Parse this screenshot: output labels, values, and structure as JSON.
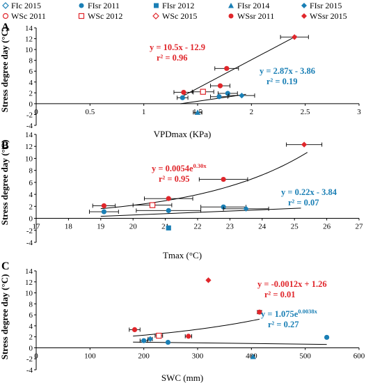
{
  "legend": {
    "items": [
      {
        "label": "FIc 2015",
        "marker": "diamond-open",
        "color": "#1a7fb5"
      },
      {
        "label": "FIsr 2011",
        "marker": "circle",
        "color": "#1a7fb5"
      },
      {
        "label": "FIsr 2012",
        "marker": "square",
        "color": "#1a7fb5"
      },
      {
        "label": "FIsr 2014",
        "marker": "triangle",
        "color": "#1a7fb5"
      },
      {
        "label": "FIsr 2015",
        "marker": "diamond",
        "color": "#1a7fb5"
      },
      {
        "label": "WSc 2011",
        "marker": "circle-open",
        "color": "#e0262b"
      },
      {
        "label": "WSc 2012",
        "marker": "square-open",
        "color": "#e0262b"
      },
      {
        "label": "WSc 2015",
        "marker": "diamond-open",
        "color": "#e0262b"
      },
      {
        "label": "WSsr 2011",
        "marker": "circle",
        "color": "#e0262b"
      },
      {
        "label": "WSsr 2015",
        "marker": "diamond",
        "color": "#e0262b"
      }
    ]
  },
  "colors": {
    "fi": "#1a7fb5",
    "ws": "#e0262b",
    "fit_line": "#000000"
  },
  "chart_data": [
    {
      "panel_label": "A",
      "type": "scatter",
      "xlabel": "VPDmax (KPa)",
      "ylabel": "Stress degree day  (°C)",
      "xlim": [
        0,
        3
      ],
      "ylim": [
        -4,
        14
      ],
      "x_ticks": [
        "0",
        "0.5",
        "1",
        "1.5",
        "2",
        "2.5",
        "3"
      ],
      "y_ticks": [
        "-4",
        "-2",
        "0",
        "2",
        "4",
        "6",
        "8",
        "10",
        "12",
        "14"
      ],
      "points": [
        {
          "x": 2.4,
          "y": 12.3,
          "xerr": 0.13,
          "group": "ws",
          "marker": "diamond"
        },
        {
          "x": 1.77,
          "y": 6.5,
          "xerr": 0.11,
          "group": "ws",
          "marker": "circle"
        },
        {
          "x": 1.71,
          "y": 3.3,
          "xerr": 0.09,
          "group": "ws",
          "marker": "circle"
        },
        {
          "x": 1.37,
          "y": 2.1,
          "xerr": 0.09,
          "group": "ws",
          "marker": "circle"
        },
        {
          "x": 1.55,
          "y": 2.2,
          "xerr": 0.1,
          "group": "ws",
          "marker": "square-open"
        },
        {
          "x": 1.78,
          "y": 1.9,
          "xerr": 0.09,
          "group": "fi",
          "marker": "circle"
        },
        {
          "x": 1.7,
          "y": 1.3,
          "xerr": 0.08,
          "group": "fi",
          "marker": "circle"
        },
        {
          "x": 1.91,
          "y": 1.5,
          "xerr": 0.12,
          "group": "fi",
          "marker": "diamond"
        },
        {
          "x": 1.36,
          "y": 1.1,
          "xerr": 0.05,
          "group": "fi",
          "marker": "circle"
        },
        {
          "x": 1.5,
          "y": -1.6,
          "xerr": 0.04,
          "group": "fi",
          "marker": "triangle"
        }
      ],
      "fits": [
        {
          "kind": "linear",
          "a": 10.5,
          "b": -12.9,
          "x_from": 1.35,
          "x_to": 2.42,
          "color": "#000000"
        },
        {
          "kind": "linear",
          "a": 2.87,
          "b": -3.86,
          "x_from": 1.34,
          "x_to": 1.95,
          "color": "#000000"
        }
      ],
      "annotations": [
        {
          "lines": [
            "y = 10.5x - 12.9",
            "r² = 0.96"
          ],
          "color": "#e0262b"
        },
        {
          "lines": [
            "y = 2.87x - 3.86",
            "r² = 0.19"
          ],
          "color": "#1a7fb5"
        }
      ]
    },
    {
      "panel_label": "B",
      "type": "scatter",
      "xlabel": "Tmax (°C)",
      "ylabel": "Stress degree day  (°C)",
      "xlim": [
        17,
        27
      ],
      "ylim": [
        -4,
        14
      ],
      "x_ticks": [
        "17",
        "18",
        "19",
        "20",
        "21",
        "22",
        "23",
        "24",
        "25",
        "26",
        "27"
      ],
      "y_ticks": [
        "-4",
        "-2",
        "0",
        "2",
        "4",
        "6",
        "8",
        "10",
        "12",
        "14"
      ],
      "points": [
        {
          "x": 25.3,
          "y": 12.3,
          "xerr": 0.55,
          "group": "ws",
          "marker": "diamond"
        },
        {
          "x": 22.8,
          "y": 6.5,
          "xerr": 0.75,
          "group": "ws",
          "marker": "circle"
        },
        {
          "x": 21.1,
          "y": 3.3,
          "xerr": 0.75,
          "group": "ws",
          "marker": "circle"
        },
        {
          "x": 19.1,
          "y": 2.1,
          "xerr": 0.35,
          "group": "ws",
          "marker": "circle"
        },
        {
          "x": 20.6,
          "y": 2.2,
          "xerr": 0.6,
          "group": "ws",
          "marker": "square-open"
        },
        {
          "x": 22.8,
          "y": 1.9,
          "xerr": 0.7,
          "group": "fi",
          "marker": "circle"
        },
        {
          "x": 21.1,
          "y": 1.3,
          "xerr": 1.0,
          "group": "fi",
          "marker": "circle"
        },
        {
          "x": 23.5,
          "y": 1.6,
          "xerr": 0.7,
          "group": "fi",
          "marker": "diamond"
        },
        {
          "x": 19.1,
          "y": 1.1,
          "xerr": 0.45,
          "group": "fi",
          "marker": "circle"
        },
        {
          "x": 21.1,
          "y": -1.6,
          "xerr": 0.0,
          "group": "fi",
          "marker": "square"
        }
      ],
      "fits": [
        {
          "kind": "exponential",
          "a": 0.0054,
          "b": 0.3,
          "x_from": 19.0,
          "x_to": 25.4,
          "color": "#000000"
        },
        {
          "kind": "linear",
          "a": 0.22,
          "b": -3.84,
          "x_from": 19.0,
          "x_to": 25.2,
          "color": "#000000"
        }
      ],
      "annotations": [
        {
          "lines": [
            "y = 0.0054e",
            "0.30x",
            "r² = 0.95"
          ],
          "color": "#e0262b"
        },
        {
          "lines": [
            "y = 0.22x - 3.84",
            "r² = 0.07"
          ],
          "color": "#1a7fb5"
        }
      ]
    },
    {
      "panel_label": "C",
      "type": "scatter",
      "xlabel": "SWC (mm)",
      "ylabel": "Stress degree day  (°C)",
      "xlim": [
        0,
        600
      ],
      "ylim": [
        -4,
        14
      ],
      "x_ticks": [
        "0",
        "100",
        "200",
        "300",
        "400",
        "500",
        "600"
      ],
      "y_ticks": [
        "-4",
        "-2",
        "0",
        "2",
        "4",
        "6",
        "8",
        "10",
        "12",
        "14"
      ],
      "points": [
        {
          "x": 320,
          "y": 12.3,
          "xerr": 0,
          "group": "ws",
          "marker": "diamond"
        },
        {
          "x": 415,
          "y": 6.5,
          "xerr": 4,
          "group": "ws",
          "marker": "circle"
        },
        {
          "x": 183,
          "y": 3.3,
          "xerr": 10,
          "group": "ws",
          "marker": "circle"
        },
        {
          "x": 283,
          "y": 2.1,
          "xerr": 6,
          "group": "ws",
          "marker": "circle"
        },
        {
          "x": 228,
          "y": 2.2,
          "xerr": 7,
          "group": "ws",
          "marker": "square-open"
        },
        {
          "x": 540,
          "y": 1.9,
          "xerr": 2,
          "group": "fi",
          "marker": "circle"
        },
        {
          "x": 212,
          "y": 1.6,
          "xerr": 4,
          "group": "fi",
          "marker": "diamond"
        },
        {
          "x": 200,
          "y": 1.3,
          "xerr": 7,
          "group": "fi",
          "marker": "circle"
        },
        {
          "x": 245,
          "y": 1.0,
          "xerr": 0,
          "group": "fi",
          "marker": "circle"
        },
        {
          "x": 403,
          "y": -1.6,
          "xerr": 3,
          "group": "fi",
          "marker": "triangle"
        }
      ],
      "fits": [
        {
          "kind": "linear",
          "a": -0.0012,
          "b": 1.26,
          "x_from": 180,
          "x_to": 540,
          "color": "#000000"
        },
        {
          "kind": "exponential",
          "a": 1.075,
          "b": 0.0038,
          "x_from": 180,
          "x_to": 415,
          "color": "#000000"
        }
      ],
      "annotations": [
        {
          "lines": [
            "y = -0.0012x + 1.26",
            "r² = 0.01"
          ],
          "color": "#e0262b"
        },
        {
          "lines": [
            "y = 1.075e",
            "0.0038x",
            "r² = 0.27"
          ],
          "color": "#1a7fb5"
        }
      ]
    }
  ]
}
